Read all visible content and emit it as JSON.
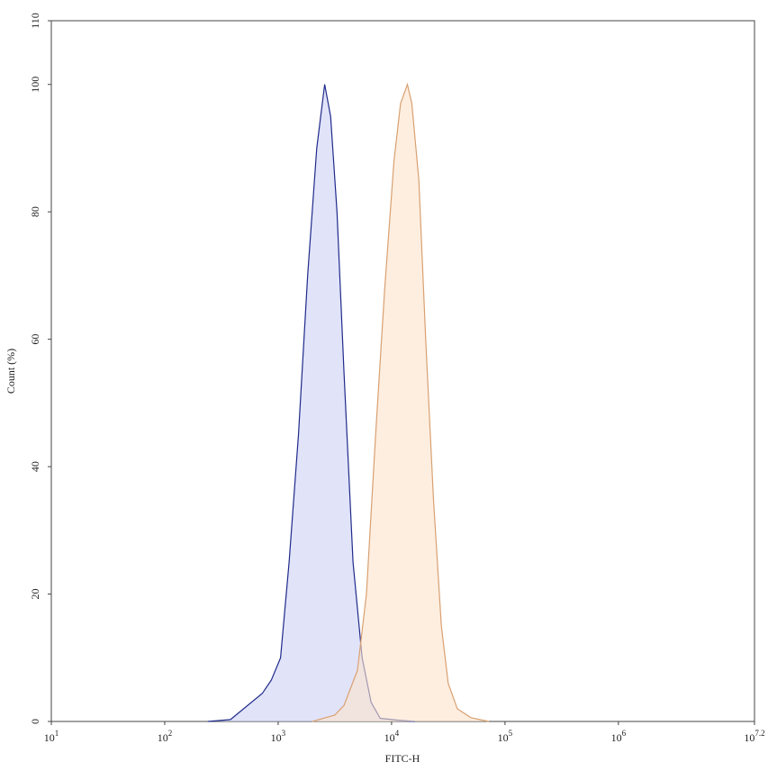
{
  "chart_data": {
    "type": "histogram-overlay",
    "xlabel": "FITC-H",
    "ylabel": "Count (%)",
    "xscale": "log",
    "xlim": [
      10,
      15848931.92
    ],
    "xticks": [
      {
        "value": 10,
        "label": "10",
        "exponent": "1"
      },
      {
        "value": 100,
        "label": "10",
        "exponent": "2"
      },
      {
        "value": 1000,
        "label": "10",
        "exponent": "3"
      },
      {
        "value": 10000,
        "label": "10",
        "exponent": "4"
      },
      {
        "value": 100000,
        "label": "10",
        "exponent": "5"
      },
      {
        "value": 1000000,
        "label": "10",
        "exponent": "6"
      },
      {
        "value": 15848931.92,
        "label": "10",
        "exponent": "7.2"
      }
    ],
    "ylim": [
      0,
      110
    ],
    "yticks": [
      0,
      20,
      40,
      60,
      80,
      100,
      110
    ],
    "series": [
      {
        "color": "#1f2a8a",
        "fill": "#cdd0f5",
        "x": [
          240,
          380,
          724,
          871,
          1050,
          1250,
          1510,
          1820,
          2190,
          2570,
          2900,
          3300,
          3800,
          4570,
          5500,
          6600,
          7940,
          11500,
          16000
        ],
        "values": [
          0,
          0.3,
          4.4,
          6.5,
          10,
          25,
          45,
          70,
          90,
          100,
          95,
          80,
          55,
          25,
          10,
          3,
          0.5,
          0.2,
          0
        ]
      },
      {
        "color": "#d9a070",
        "fill": "#fbe3cc",
        "x": [
          2000,
          3160,
          3800,
          5000,
          6000,
          7240,
          8700,
          10500,
          12000,
          13800,
          15100,
          17400,
          20000,
          23400,
          27500,
          31600,
          38000,
          50000,
          72000
        ],
        "values": [
          0,
          1,
          2.5,
          8,
          20,
          45,
          68,
          88,
          97,
          100,
          97,
          85,
          60,
          35,
          15,
          6,
          2,
          0.6,
          0
        ]
      }
    ]
  }
}
